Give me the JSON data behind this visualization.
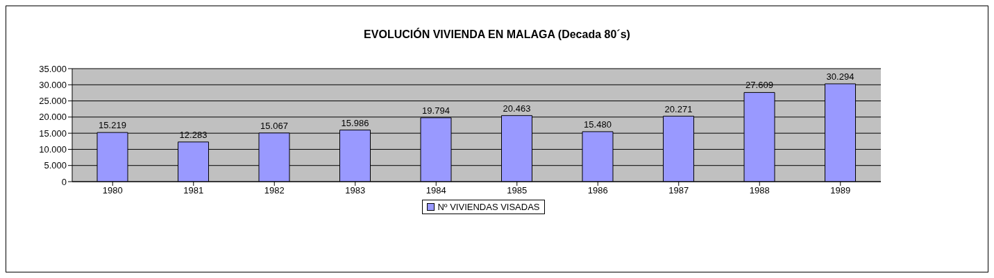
{
  "chart_data": {
    "type": "bar",
    "title": "EVOLUCIÓN VIVIENDA EN MALAGA (Decada 80´s)",
    "categories": [
      "1980",
      "1981",
      "1982",
      "1983",
      "1984",
      "1985",
      "1986",
      "1987",
      "1988",
      "1989"
    ],
    "series": [
      {
        "name": "Nº VIVIENDAS VISADAS",
        "color": "#9999ff",
        "values": [
          15219,
          12283,
          15067,
          15986,
          19794,
          20463,
          15480,
          20271,
          27609,
          30294
        ],
        "value_labels": [
          "15.219",
          "12.283",
          "15.067",
          "15.986",
          "19.794",
          "20.463",
          "15.480",
          "20.271",
          "27.609",
          "30.294"
        ]
      }
    ],
    "ylim": [
      0,
      35000
    ],
    "yticks": [
      {
        "value": 0,
        "label": "0"
      },
      {
        "value": 5000,
        "label": "5.000"
      },
      {
        "value": 10000,
        "label": "10.000"
      },
      {
        "value": 15000,
        "label": "15.000"
      },
      {
        "value": 20000,
        "label": "20.000"
      },
      {
        "value": 25000,
        "label": "25.000"
      },
      {
        "value": 30000,
        "label": "30.000"
      },
      {
        "value": 35000,
        "label": "35.000"
      }
    ],
    "grid": "y",
    "legend": "bottom"
  }
}
